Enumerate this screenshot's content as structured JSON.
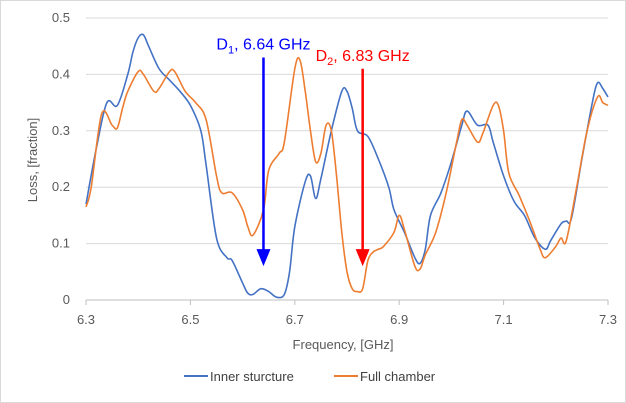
{
  "chart_data": {
    "type": "line",
    "xlabel": "Frequency, [GHz]",
    "ylabel": "Loss, [fraction]",
    "xlim": [
      6.3,
      7.3
    ],
    "ylim": [
      0,
      0.5
    ],
    "x_ticks": [
      6.3,
      6.5,
      6.7,
      6.9,
      7.1,
      7.3
    ],
    "x_tick_labels": [
      "6.3",
      "6.5",
      "6.7",
      "6.9",
      "7.1",
      "7.3"
    ],
    "y_ticks": [
      0,
      0.1,
      0.2,
      0.3,
      0.4,
      0.5
    ],
    "y_tick_labels": [
      "0",
      "0.1",
      "0.2",
      "0.3",
      "0.4",
      "0.5"
    ],
    "grid": "horizontal",
    "legend_position": "bottom",
    "series": [
      {
        "name": "Inner sturcture",
        "color": "#4472c4",
        "points": [
          [
            6.3,
            0.17
          ],
          [
            6.32,
            0.27
          ],
          [
            6.34,
            0.35
          ],
          [
            6.36,
            0.345
          ],
          [
            6.38,
            0.4
          ],
          [
            6.39,
            0.44
          ],
          [
            6.4,
            0.465
          ],
          [
            6.41,
            0.47
          ],
          [
            6.42,
            0.45
          ],
          [
            6.44,
            0.41
          ],
          [
            6.46,
            0.39
          ],
          [
            6.48,
            0.37
          ],
          [
            6.5,
            0.345
          ],
          [
            6.52,
            0.3
          ],
          [
            6.53,
            0.24
          ],
          [
            6.55,
            0.11
          ],
          [
            6.57,
            0.075
          ],
          [
            6.58,
            0.07
          ],
          [
            6.6,
            0.03
          ],
          [
            6.61,
            0.012
          ],
          [
            6.62,
            0.01
          ],
          [
            6.635,
            0.02
          ],
          [
            6.65,
            0.015
          ],
          [
            6.665,
            0.005
          ],
          [
            6.68,
            0.01
          ],
          [
            6.69,
            0.05
          ],
          [
            6.7,
            0.13
          ],
          [
            6.72,
            0.21
          ],
          [
            6.73,
            0.22
          ],
          [
            6.74,
            0.18
          ],
          [
            6.75,
            0.215
          ],
          [
            6.77,
            0.3
          ],
          [
            6.79,
            0.37
          ],
          [
            6.8,
            0.37
          ],
          [
            6.81,
            0.34
          ],
          [
            6.82,
            0.3
          ],
          [
            6.84,
            0.29
          ],
          [
            6.86,
            0.25
          ],
          [
            6.88,
            0.2
          ],
          [
            6.89,
            0.16
          ],
          [
            6.91,
            0.12
          ],
          [
            6.93,
            0.075
          ],
          [
            6.94,
            0.065
          ],
          [
            6.95,
            0.09
          ],
          [
            6.96,
            0.15
          ],
          [
            6.98,
            0.19
          ],
          [
            7.0,
            0.245
          ],
          [
            7.02,
            0.31
          ],
          [
            7.03,
            0.335
          ],
          [
            7.05,
            0.31
          ],
          [
            7.07,
            0.31
          ],
          [
            7.08,
            0.28
          ],
          [
            7.1,
            0.22
          ],
          [
            7.12,
            0.175
          ],
          [
            7.14,
            0.15
          ],
          [
            7.16,
            0.11
          ],
          [
            7.18,
            0.09
          ],
          [
            7.19,
            0.105
          ],
          [
            7.21,
            0.135
          ],
          [
            7.22,
            0.14
          ],
          [
            7.23,
            0.145
          ],
          [
            7.25,
            0.25
          ],
          [
            7.27,
            0.35
          ],
          [
            7.28,
            0.385
          ],
          [
            7.29,
            0.375
          ],
          [
            7.3,
            0.36
          ]
        ]
      },
      {
        "name": "Full chamber",
        "color": "#ed7d31",
        "points": [
          [
            6.3,
            0.165
          ],
          [
            6.31,
            0.2
          ],
          [
            6.33,
            0.33
          ],
          [
            6.35,
            0.31
          ],
          [
            6.36,
            0.305
          ],
          [
            6.37,
            0.34
          ],
          [
            6.38,
            0.37
          ],
          [
            6.4,
            0.405
          ],
          [
            6.41,
            0.4
          ],
          [
            6.43,
            0.37
          ],
          [
            6.44,
            0.375
          ],
          [
            6.46,
            0.405
          ],
          [
            6.47,
            0.405
          ],
          [
            6.49,
            0.37
          ],
          [
            6.51,
            0.35
          ],
          [
            6.53,
            0.32
          ],
          [
            6.55,
            0.22
          ],
          [
            6.56,
            0.19
          ],
          [
            6.58,
            0.19
          ],
          [
            6.6,
            0.16
          ],
          [
            6.61,
            0.13
          ],
          [
            6.62,
            0.115
          ],
          [
            6.64,
            0.16
          ],
          [
            6.65,
            0.23
          ],
          [
            6.67,
            0.26
          ],
          [
            6.68,
            0.28
          ],
          [
            6.7,
            0.41
          ],
          [
            6.71,
            0.425
          ],
          [
            6.72,
            0.37
          ],
          [
            6.73,
            0.3
          ],
          [
            6.74,
            0.245
          ],
          [
            6.75,
            0.26
          ],
          [
            6.76,
            0.31
          ],
          [
            6.77,
            0.3
          ],
          [
            6.78,
            0.22
          ],
          [
            6.79,
            0.12
          ],
          [
            6.8,
            0.05
          ],
          [
            6.81,
            0.02
          ],
          [
            6.82,
            0.015
          ],
          [
            6.83,
            0.02
          ],
          [
            6.84,
            0.07
          ],
          [
            6.85,
            0.085
          ],
          [
            6.86,
            0.09
          ],
          [
            6.87,
            0.095
          ],
          [
            6.89,
            0.12
          ],
          [
            6.9,
            0.15
          ],
          [
            6.91,
            0.125
          ],
          [
            6.93,
            0.06
          ],
          [
            6.94,
            0.055
          ],
          [
            6.95,
            0.08
          ],
          [
            6.97,
            0.12
          ],
          [
            6.99,
            0.19
          ],
          [
            7.01,
            0.28
          ],
          [
            7.02,
            0.32
          ],
          [
            7.03,
            0.31
          ],
          [
            7.05,
            0.28
          ],
          [
            7.06,
            0.295
          ],
          [
            7.08,
            0.345
          ],
          [
            7.09,
            0.345
          ],
          [
            7.1,
            0.3
          ],
          [
            7.11,
            0.225
          ],
          [
            7.13,
            0.185
          ],
          [
            7.15,
            0.14
          ],
          [
            7.17,
            0.09
          ],
          [
            7.18,
            0.075
          ],
          [
            7.2,
            0.095
          ],
          [
            7.21,
            0.11
          ],
          [
            7.22,
            0.105
          ],
          [
            7.24,
            0.2
          ],
          [
            7.26,
            0.3
          ],
          [
            7.28,
            0.36
          ],
          [
            7.29,
            0.35
          ],
          [
            7.3,
            0.345
          ]
        ]
      }
    ],
    "annotations": [
      {
        "prefix": "D",
        "sub": "1",
        "suffix": ", 6.64 GHz",
        "x": 6.64,
        "y_top": 0.43,
        "y_tip": 0.06,
        "color": "#0000ff"
      },
      {
        "prefix": "D",
        "sub": "2",
        "suffix": ", 6.83 GHz",
        "x": 6.83,
        "y_top": 0.41,
        "y_tip": 0.06,
        "color": "#ff0000"
      }
    ]
  }
}
